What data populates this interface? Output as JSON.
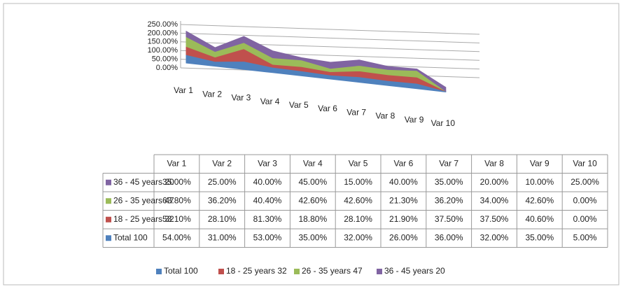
{
  "chart_data": {
    "type": "area",
    "stacked": true,
    "categories": [
      "Var 1",
      "Var 2",
      "Var 3",
      "Var 4",
      "Var 5",
      "Var 6",
      "Var 7",
      "Var 8",
      "Var 9",
      "Var 10"
    ],
    "series": [
      {
        "name": "Total 100",
        "color": "#4f81bd",
        "values": [
          54,
          31,
          53,
          35,
          32,
          26,
          36,
          32,
          35,
          5
        ],
        "value_labels": [
          "54.00%",
          "31.00%",
          "53.00%",
          "35.00%",
          "32.00%",
          "26.00%",
          "36.00%",
          "32.00%",
          "35.00%",
          "5.00%"
        ]
      },
      {
        "name": "18 - 25 years 32",
        "color": "#c0504d",
        "values": [
          53.1,
          28.1,
          81.3,
          18.8,
          28.1,
          21.9,
          37.5,
          37.5,
          40.6,
          0
        ],
        "value_labels": [
          "53.10%",
          "28.10%",
          "81.30%",
          "18.80%",
          "28.10%",
          "21.90%",
          "37.50%",
          "37.50%",
          "40.60%",
          "0.00%"
        ]
      },
      {
        "name": "26 - 35 years 47",
        "color": "#9bbb59",
        "values": [
          63.8,
          36.2,
          40.4,
          42.6,
          42.6,
          21.3,
          36.2,
          34,
          42.6,
          0
        ],
        "value_labels": [
          "63.80%",
          "36.20%",
          "40.40%",
          "42.60%",
          "42.60%",
          "21.30%",
          "36.20%",
          "34.00%",
          "42.60%",
          "0.00%"
        ]
      },
      {
        "name": "36 - 45 years 20",
        "color": "#8064a2",
        "values": [
          35,
          25,
          40,
          45,
          15,
          40,
          35,
          20,
          10,
          25
        ],
        "value_labels": [
          "35.00%",
          "25.00%",
          "40.00%",
          "45.00%",
          "15.00%",
          "40.00%",
          "35.00%",
          "20.00%",
          "10.00%",
          "25.00%"
        ]
      }
    ],
    "ylim": [
      0,
      250
    ],
    "yticks": [
      {
        "value": 0,
        "label": "0.00%"
      },
      {
        "value": 50,
        "label": "50.00%"
      },
      {
        "value": 100,
        "label": "100.00%"
      },
      {
        "value": 150,
        "label": "150.00%"
      },
      {
        "value": 200,
        "label": "200.00%"
      },
      {
        "value": 250,
        "label": "250.00%"
      }
    ],
    "grid": true,
    "legend": "bottom",
    "data_table": true
  }
}
